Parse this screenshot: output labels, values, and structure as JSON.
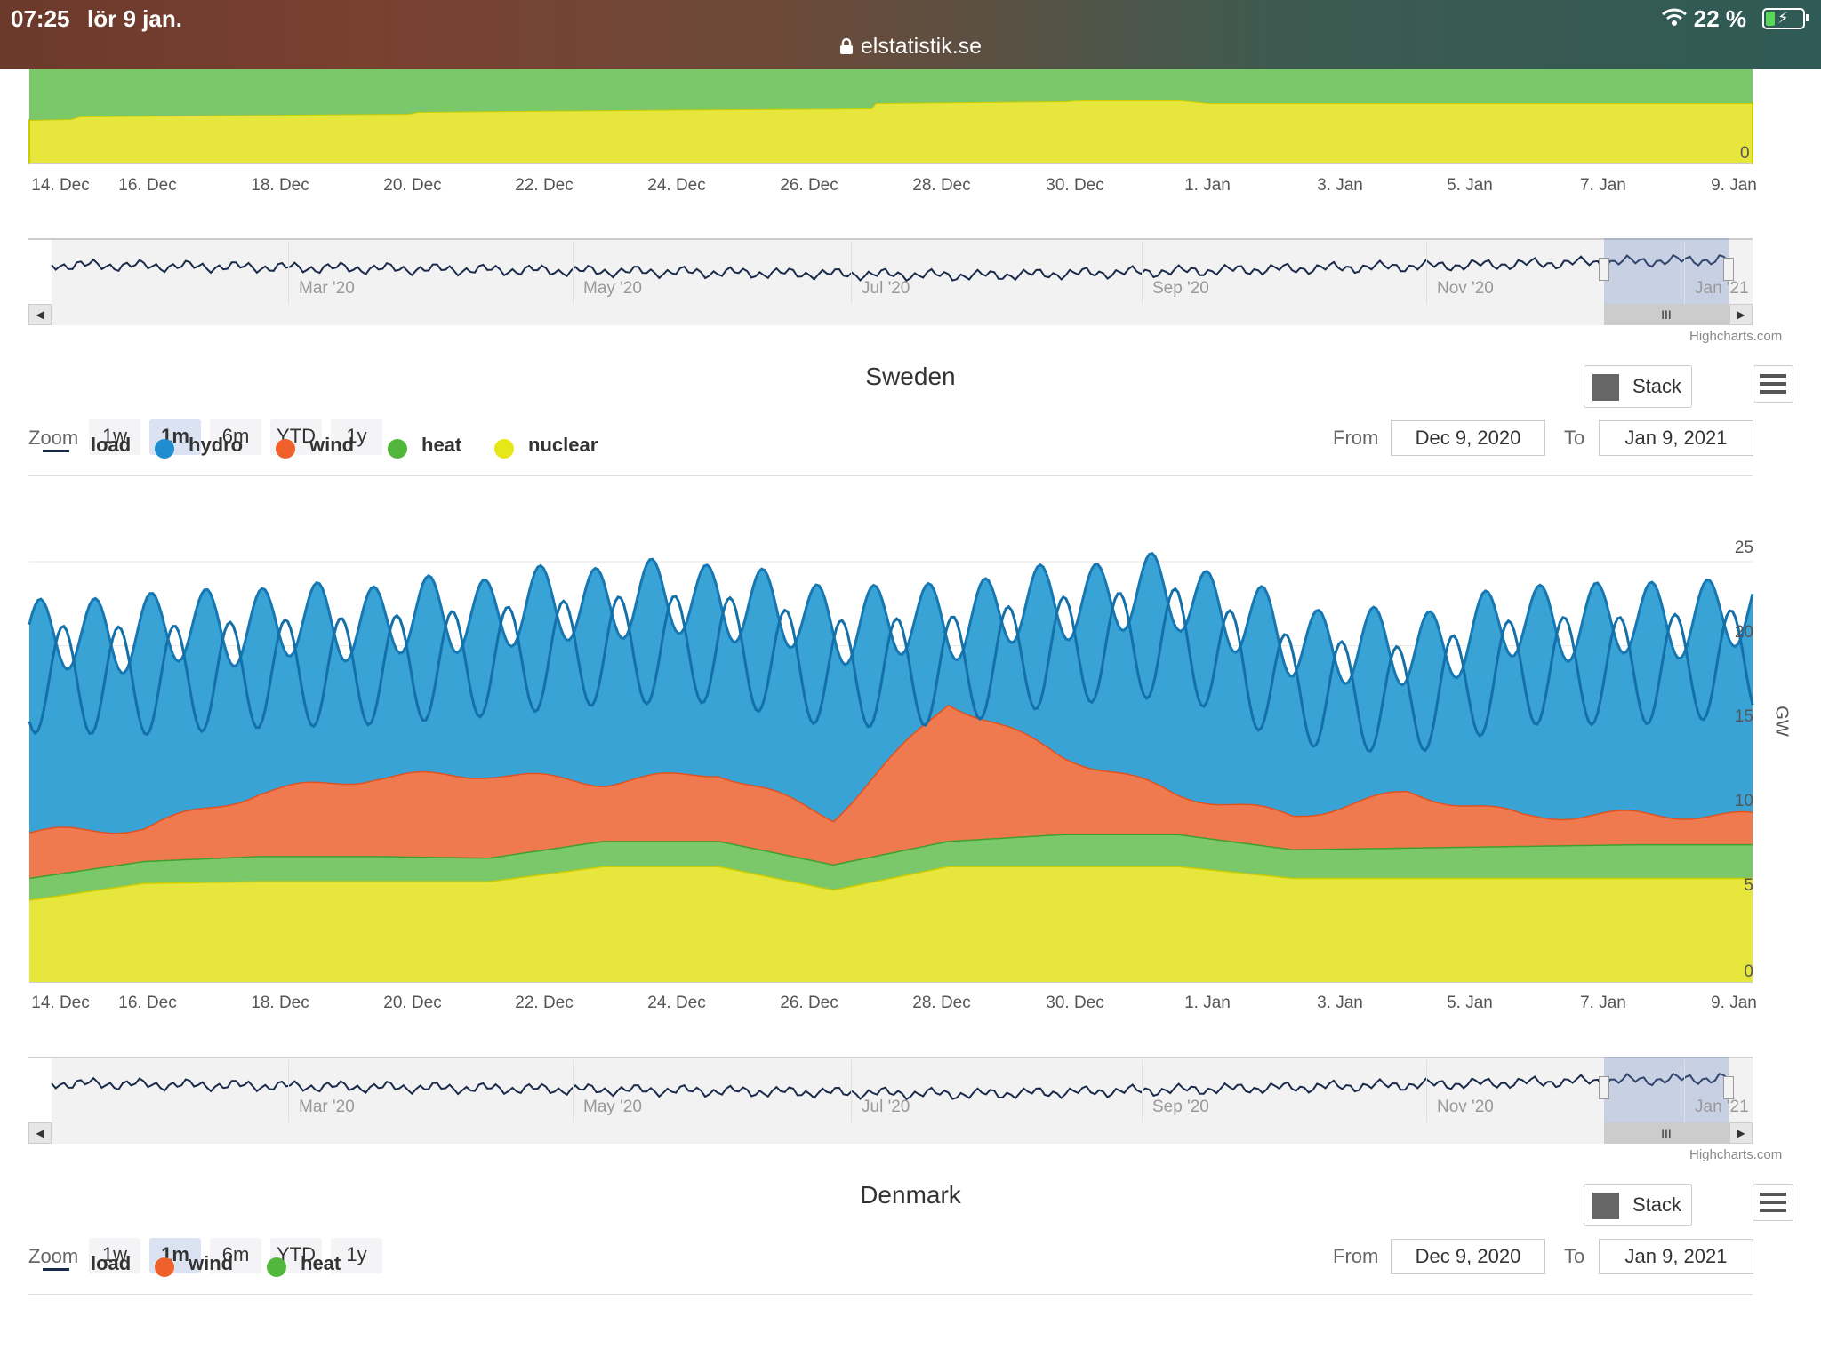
{
  "status": {
    "time": "07:25",
    "date": "lör 9 jan.",
    "battery": "22 %",
    "url": "elstatistik.se"
  },
  "x_ticks": [
    "14. Dec",
    "16. Dec",
    "18. Dec",
    "20. Dec",
    "22. Dec",
    "24. Dec",
    "26. Dec",
    "28. Dec",
    "30. Dec",
    "1. Jan",
    "3. Jan",
    "5. Jan",
    "7. Jan",
    "9. Jan"
  ],
  "navigator_ticks": [
    "Mar '20",
    "May '20",
    "Jul '20",
    "Sep '20",
    "Nov '20",
    "Jan '21"
  ],
  "credit": "Highcharts.com",
  "zoom": {
    "label": "Zoom",
    "buttons": [
      "1w",
      "1m",
      "6m",
      "YTD",
      "1y"
    ],
    "active": "1m"
  },
  "range": {
    "from_label": "From",
    "to_label": "To",
    "from": "Dec 9, 2020",
    "to": "Jan 9, 2021"
  },
  "stack_label": "Stack",
  "colors": {
    "load": "#1a2a4a",
    "hydro": "#1f8dd0",
    "wind": "#f0602a",
    "heat": "#52b63d",
    "nuclear": "#e6e619"
  },
  "sweden": {
    "title": "Sweden",
    "legend": [
      "load",
      "hydro",
      "wind",
      "heat",
      "nuclear"
    ],
    "y_ticks": [
      "25",
      "20",
      "15",
      "10",
      "5",
      "0"
    ],
    "y_unit": "GW"
  },
  "denmark": {
    "title": "Denmark",
    "legend": [
      "load",
      "wind",
      "heat"
    ]
  },
  "chart_data": {
    "type": "area",
    "title": "Sweden",
    "stacked": true,
    "ylabel": "GW",
    "ylim": [
      0,
      25
    ],
    "x": [
      "2020-12-13",
      "2020-12-15",
      "2020-12-17",
      "2020-12-19",
      "2020-12-21",
      "2020-12-23",
      "2020-12-25",
      "2020-12-26",
      "2020-12-27",
      "2020-12-28",
      "2020-12-30",
      "2021-01-01",
      "2021-01-03",
      "2021-01-05",
      "2021-01-07",
      "2021-01-09"
    ],
    "series": [
      {
        "name": "nuclear",
        "values": [
          4.9,
          5.9,
          6.0,
          6.0,
          6.0,
          6.9,
          6.9,
          5.5,
          6.9,
          6.9,
          6.9,
          6.2,
          6.2,
          6.2,
          6.2,
          6.2
        ]
      },
      {
        "name": "heat",
        "values": [
          1.3,
          1.3,
          1.5,
          1.5,
          1.4,
          1.5,
          1.5,
          1.5,
          1.5,
          1.9,
          1.9,
          1.7,
          1.8,
          1.9,
          2.0,
          2.0
        ]
      },
      {
        "name": "wind",
        "values": [
          2.7,
          2.0,
          3.8,
          4.7,
          5.0,
          3.5,
          4.1,
          2.8,
          8.3,
          4.7,
          2.4,
          2.0,
          3.3,
          1.8,
          1.8,
          1.7
        ]
      },
      {
        "name": "hydro",
        "values": [
          11.5,
          11.7,
          10.0,
          9.3,
          9.6,
          10.8,
          10.3,
          11.5,
          4.8,
          9.2,
          12.0,
          10.4,
          8.4,
          11.6,
          11.5,
          12.1
        ]
      }
    ],
    "load": [
      21.0,
      20.9,
      21.3,
      21.5,
      22.0,
      22.7,
      22.8,
      21.3,
      21.5,
      22.7,
      23.2,
      20.3,
      19.7,
      21.5,
      21.5,
      22.0
    ]
  }
}
